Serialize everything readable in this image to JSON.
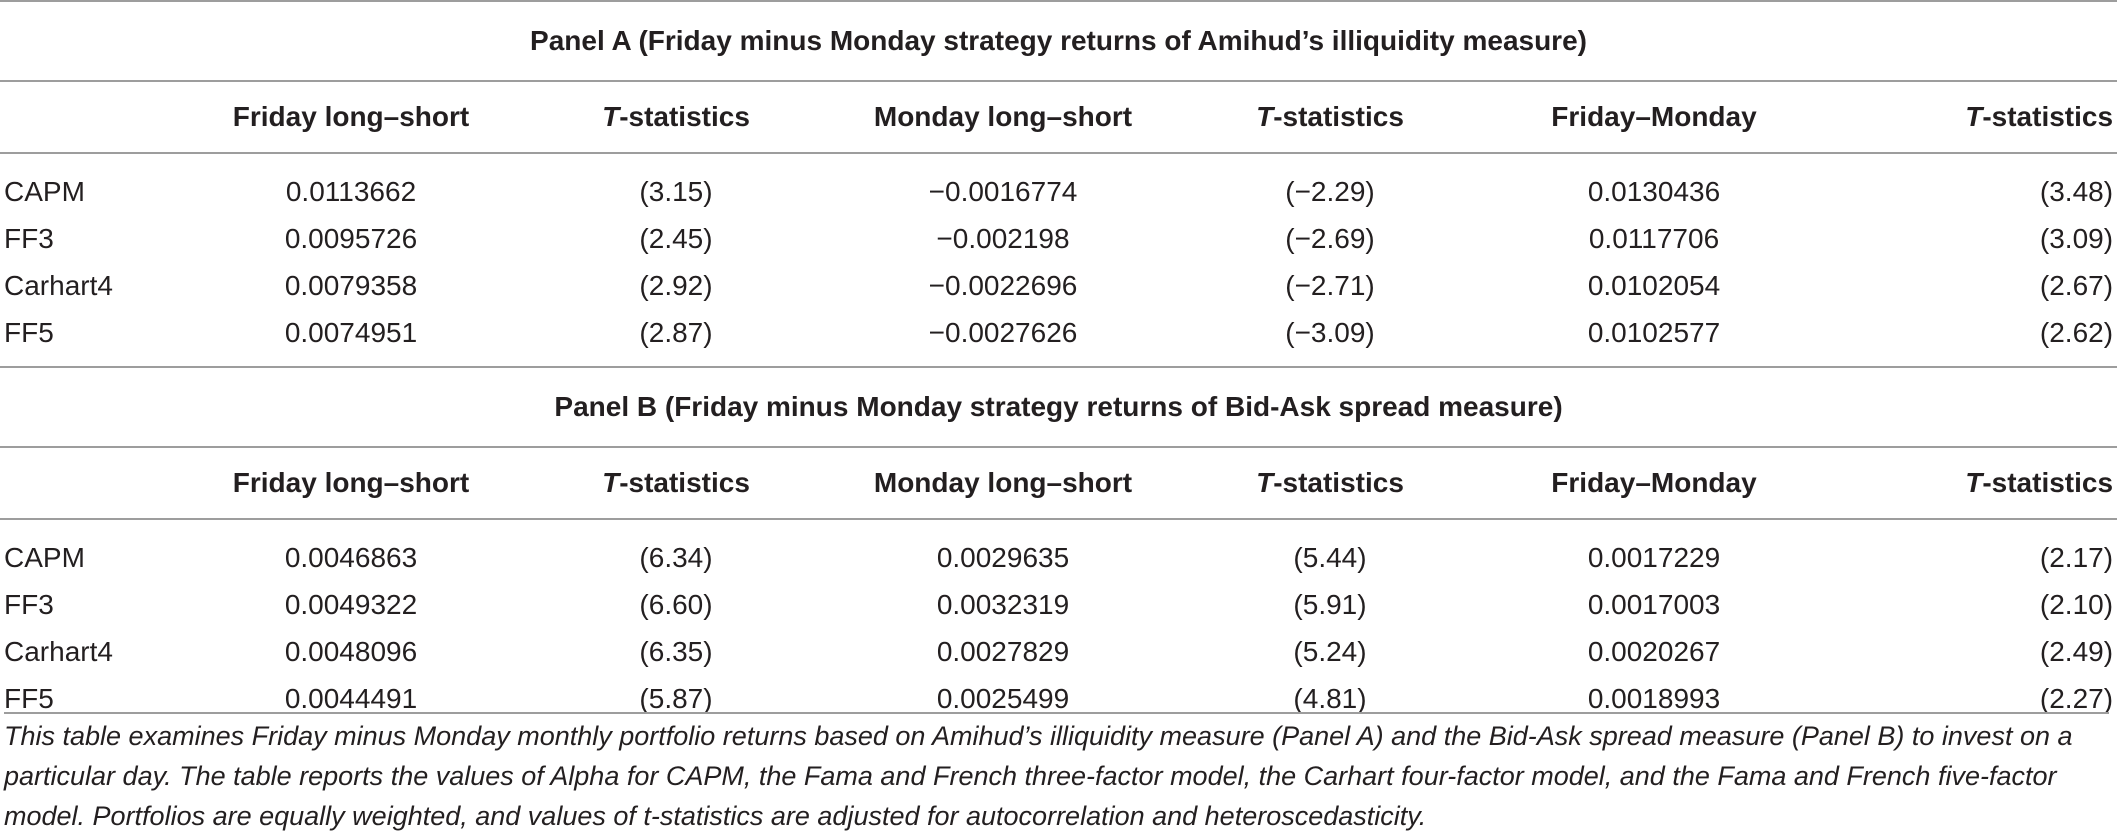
{
  "columns": [
    "",
    "Friday long–short",
    "T-statistics",
    "Monday long–short",
    "T-statistics",
    "Friday–Monday",
    "T-statistics"
  ],
  "t_prefix": "T",
  "t_suffix": "-statistics",
  "panels": [
    {
      "title": "Panel A (Friday minus Monday strategy returns of Amihud’s illiquidity measure)",
      "rows": [
        [
          "CAPM",
          "0.0113662",
          "(3.15)",
          "−0.0016774",
          "(−2.29)",
          "0.0130436",
          "(3.48)"
        ],
        [
          "FF3",
          "0.0095726",
          "(2.45)",
          "−0.002198",
          "(−2.69)",
          "0.0117706",
          "(3.09)"
        ],
        [
          "Carhart4",
          "0.0079358",
          "(2.92)",
          "−0.0022696",
          "(−2.71)",
          "0.0102054",
          "(2.67)"
        ],
        [
          "FF5",
          "0.0074951",
          "(2.87)",
          "−0.0027626",
          "(−3.09)",
          "0.0102577",
          "(2.62)"
        ]
      ]
    },
    {
      "title": "Panel B (Friday minus Monday strategy returns of Bid-Ask spread measure)",
      "rows": [
        [
          "CAPM",
          "0.0046863",
          "(6.34)",
          "0.0029635",
          "(5.44)",
          "0.0017229",
          "(2.17)"
        ],
        [
          "FF3",
          "0.0049322",
          "(6.60)",
          "0.0032319",
          "(5.91)",
          "0.0017003",
          "(2.10)"
        ],
        [
          "Carhart4",
          "0.0048096",
          "(6.35)",
          "0.0027829",
          "(5.24)",
          "0.0020267",
          "(2.49)"
        ],
        [
          "FF5",
          "0.0044491",
          "(5.87)",
          "0.0025499",
          "(4.81)",
          "0.0018993",
          "(2.27)"
        ]
      ]
    }
  ],
  "caption": "This table examines Friday minus Monday monthly portfolio returns based on Amihud’s illiquidity measure (Panel A) and the Bid-Ask spread measure (Panel B) to invest on a particular day. The table reports the values of Alpha for CAPM, the Fama and French three-factor model, the Carhart four-factor model, and the Fama and French five-factor model. Portfolios are equally weighted, and values of t-statistics are adjusted for autocorrelation and heteroscedasticity."
}
